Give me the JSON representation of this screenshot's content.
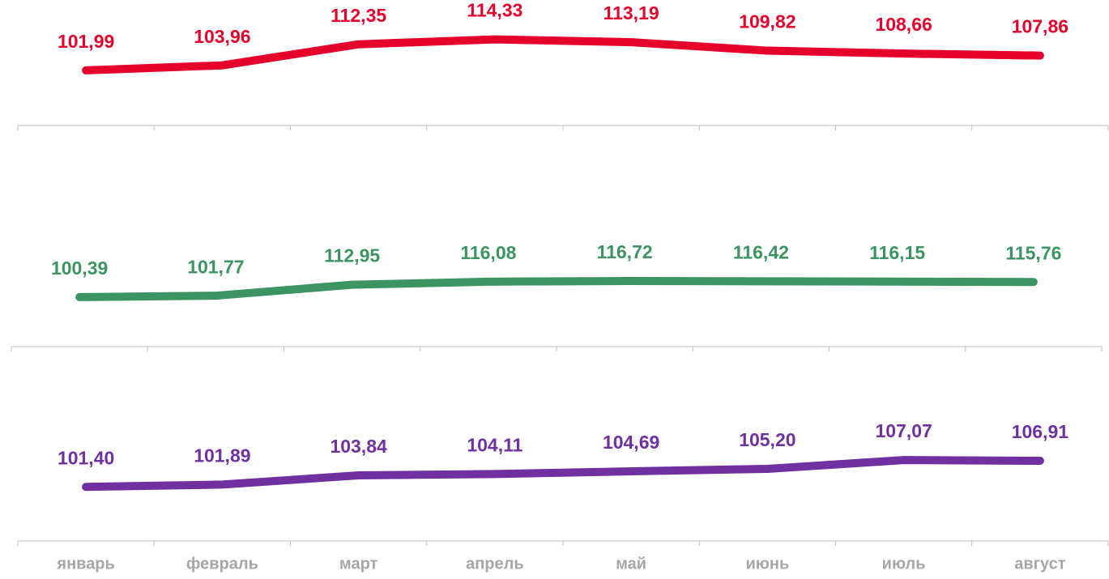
{
  "chart_data": [
    {
      "type": "line",
      "color": "#e4002b",
      "ylim": [
        80,
        130
      ],
      "values": [
        101.99,
        103.96,
        112.35,
        114.33,
        113.19,
        109.82,
        108.66,
        107.86
      ],
      "value_labels": [
        "101,99",
        "103,96",
        "112,35",
        "114,33",
        "113,19",
        "109,82",
        "108,66",
        "107,86"
      ]
    },
    {
      "type": "line",
      "color": "#3d9463",
      "ylim": [
        50,
        275
      ],
      "values": [
        100.39,
        101.77,
        112.95,
        116.08,
        116.72,
        116.42,
        116.15,
        115.76
      ],
      "value_labels": [
        "100,39",
        "101,77",
        "112,95",
        "116,08",
        "116,72",
        "116,42",
        "116,15",
        "115,76"
      ]
    },
    {
      "type": "line",
      "color": "#7030a0",
      "ylim": [
        90,
        131
      ],
      "categories": [
        "январь",
        "февраль",
        "март",
        "апрель",
        "май",
        "июнь",
        "июль",
        "август"
      ],
      "values": [
        101.4,
        101.89,
        103.84,
        104.11,
        104.69,
        105.2,
        107.07,
        106.91
      ],
      "value_labels": [
        "101,40",
        "101,89",
        "103,84",
        "104,11",
        "104,69",
        "105,20",
        "107,07",
        "106,91"
      ]
    }
  ]
}
